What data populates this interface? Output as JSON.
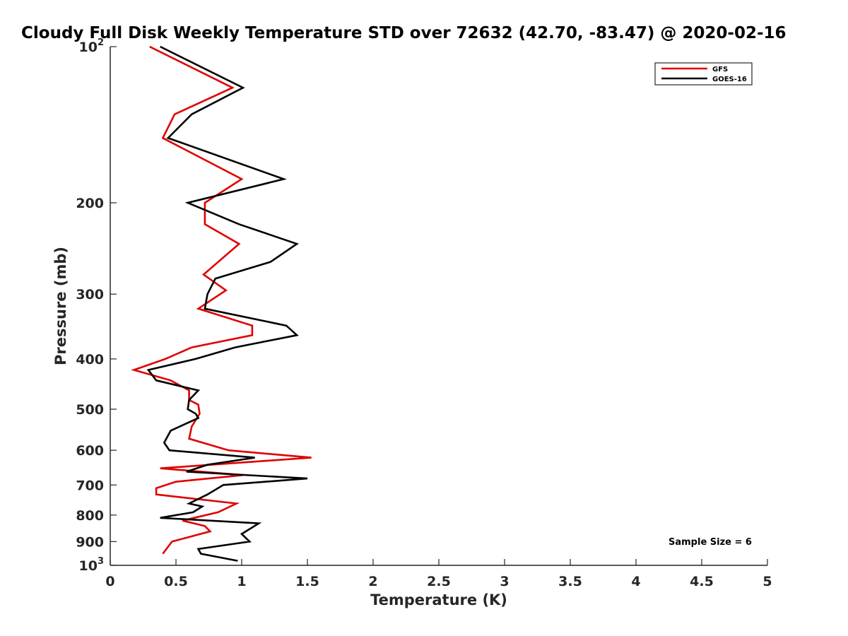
{
  "chart_data": {
    "type": "line",
    "title": "Cloudy Full Disk Weekly Temperature STD over 72632 (42.70, -83.47) @ 2020-02-16",
    "xlabel": "Temperature (K)",
    "ylabel": "Pressure (mb)",
    "xlim": [
      0,
      5
    ],
    "ylim": [
      100,
      1000
    ],
    "y_scale": "log",
    "y_reversed": true,
    "x_ticks": [
      "0",
      "0.5",
      "1",
      "1.5",
      "2",
      "2.5",
      "3",
      "3.5",
      "4",
      "4.5",
      "5"
    ],
    "y_ticks": [
      {
        "value": 100,
        "base": "10",
        "exp": "2"
      },
      {
        "value": 200,
        "label": "200"
      },
      {
        "value": 300,
        "label": "300"
      },
      {
        "value": 400,
        "label": "400"
      },
      {
        "value": 500,
        "label": "500"
      },
      {
        "value": 600,
        "label": "600"
      },
      {
        "value": 700,
        "label": "700"
      },
      {
        "value": 800,
        "label": "800"
      },
      {
        "value": 900,
        "label": "900"
      },
      {
        "value": 1000,
        "base": "10",
        "exp": "3"
      }
    ],
    "legend_position": "top-right",
    "grid": false,
    "annotation": "Sample Size = 6",
    "series": [
      {
        "name": "GFS",
        "color": "#e00000",
        "points": [
          [
            0.3,
            100
          ],
          [
            0.93,
            120
          ],
          [
            0.49,
            135
          ],
          [
            0.4,
            150
          ],
          [
            1.0,
            180
          ],
          [
            0.72,
            200
          ],
          [
            0.72,
            220
          ],
          [
            0.98,
            240
          ],
          [
            0.71,
            275
          ],
          [
            0.88,
            295
          ],
          [
            0.67,
            320
          ],
          [
            1.08,
            345
          ],
          [
            1.08,
            360
          ],
          [
            0.62,
            380
          ],
          [
            0.42,
            400
          ],
          [
            0.18,
            420
          ],
          [
            0.46,
            440
          ],
          [
            0.6,
            460
          ],
          [
            0.6,
            480
          ],
          [
            0.67,
            490
          ],
          [
            0.68,
            510
          ],
          [
            0.62,
            540
          ],
          [
            0.6,
            570
          ],
          [
            0.9,
            600
          ],
          [
            1.53,
            620
          ],
          [
            0.38,
            650
          ],
          [
            1.01,
            670
          ],
          [
            0.5,
            690
          ],
          [
            0.35,
            710
          ],
          [
            0.35,
            730
          ],
          [
            0.96,
            760
          ],
          [
            0.82,
            790
          ],
          [
            0.55,
            820
          ],
          [
            0.72,
            840
          ],
          [
            0.76,
            860
          ],
          [
            0.47,
            900
          ],
          [
            0.4,
            950
          ]
        ]
      },
      {
        "name": "GOES-16",
        "color": "#000000",
        "points": [
          [
            0.38,
            100
          ],
          [
            1.01,
            120
          ],
          [
            0.62,
            135
          ],
          [
            0.44,
            150
          ],
          [
            1.32,
            180
          ],
          [
            0.59,
            200
          ],
          [
            0.98,
            220
          ],
          [
            1.42,
            240
          ],
          [
            1.22,
            260
          ],
          [
            0.8,
            280
          ],
          [
            0.74,
            300
          ],
          [
            0.72,
            320
          ],
          [
            1.34,
            345
          ],
          [
            1.42,
            360
          ],
          [
            0.95,
            380
          ],
          [
            0.65,
            400
          ],
          [
            0.29,
            420
          ],
          [
            0.35,
            440
          ],
          [
            0.67,
            460
          ],
          [
            0.6,
            480
          ],
          [
            0.59,
            500
          ],
          [
            0.65,
            510
          ],
          [
            0.67,
            520
          ],
          [
            0.46,
            550
          ],
          [
            0.41,
            580
          ],
          [
            0.45,
            600
          ],
          [
            1.1,
            620
          ],
          [
            0.74,
            640
          ],
          [
            0.58,
            660
          ],
          [
            1.5,
            680
          ],
          [
            0.86,
            700
          ],
          [
            0.74,
            730
          ],
          [
            0.6,
            760
          ],
          [
            0.7,
            770
          ],
          [
            0.63,
            790
          ],
          [
            0.38,
            810
          ],
          [
            1.13,
            830
          ],
          [
            1.0,
            870
          ],
          [
            1.06,
            900
          ],
          [
            0.67,
            930
          ],
          [
            0.69,
            950
          ],
          [
            0.97,
            980
          ]
        ]
      }
    ]
  }
}
